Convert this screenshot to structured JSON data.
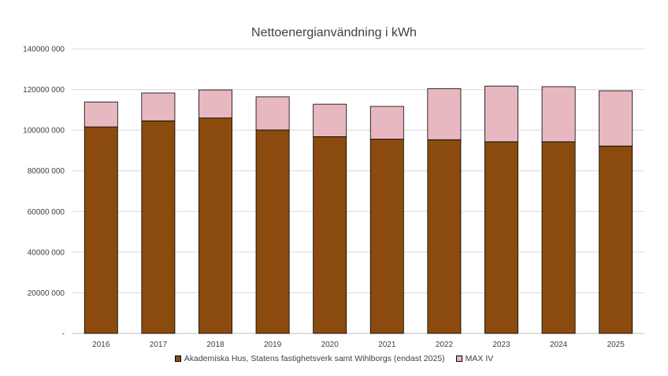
{
  "chart_data": {
    "type": "bar",
    "stacked": true,
    "title": "Nettoenergianvändning i kWh",
    "categories": [
      "2016",
      "2017",
      "2018",
      "2019",
      "2020",
      "2021",
      "2022",
      "2023",
      "2024",
      "2025"
    ],
    "series": [
      {
        "name": "Akademiska Hus, Statens fastighetsverk samt Wihlborgs (endast 2025)",
        "color": "#8B4B0E",
        "values": [
          101600000,
          104600000,
          106000000,
          100100000,
          96800000,
          95600000,
          95300000,
          94300000,
          94300000,
          92200000
        ]
      },
      {
        "name": "MAX IV",
        "color": "#E8B8C0",
        "values": [
          12300000,
          13700000,
          13800000,
          16300000,
          16000000,
          16100000,
          25100000,
          27400000,
          27100000,
          27200000
        ]
      }
    ],
    "ylim": [
      0,
      140000000
    ],
    "yticks": [
      "-",
      "20000 000",
      "40000 000",
      "60000 000",
      "80000 000",
      "100000 000",
      "120000 000",
      "140000 000"
    ],
    "grid": true,
    "legend": "bottom"
  }
}
